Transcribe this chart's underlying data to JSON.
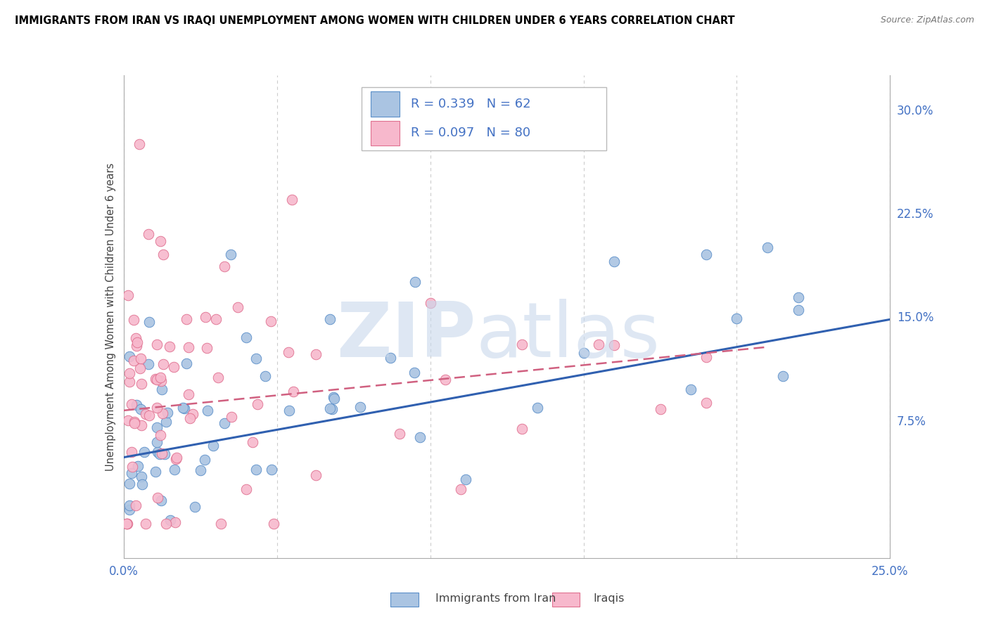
{
  "title": "IMMIGRANTS FROM IRAN VS IRAQI UNEMPLOYMENT AMONG WOMEN WITH CHILDREN UNDER 6 YEARS CORRELATION CHART",
  "source": "Source: ZipAtlas.com",
  "ylabel": "Unemployment Among Women with Children Under 6 years",
  "xlim": [
    0.0,
    0.25
  ],
  "ylim": [
    -0.025,
    0.325
  ],
  "x_tick_positions": [
    0.0,
    0.05,
    0.1,
    0.15,
    0.2,
    0.25
  ],
  "x_tick_labels": [
    "0.0%",
    "",
    "",
    "",
    "",
    "25.0%"
  ],
  "y_ticks_right": [
    0.075,
    0.15,
    0.225,
    0.3
  ],
  "y_tick_labels_right": [
    "7.5%",
    "15.0%",
    "22.5%",
    "30.0%"
  ],
  "legend_label1": "Immigrants from Iran",
  "legend_label2": "Iraqis",
  "R1": "R = 0.339",
  "N1": "N = 62",
  "R2": "R = 0.097",
  "N2": "N = 80",
  "color_iran_fill": "#aac4e2",
  "color_iran_edge": "#5b8fc9",
  "color_iraq_fill": "#f7b8cc",
  "color_iraq_edge": "#e07090",
  "color_iran_line": "#3060b0",
  "color_iraq_line": "#d06080",
  "iran_line_x": [
    0.0,
    0.25
  ],
  "iran_line_y": [
    0.048,
    0.148
  ],
  "iraq_line_x": [
    0.0,
    0.21
  ],
  "iraq_line_y": [
    0.082,
    0.128
  ],
  "watermark_color": "#c8d8ec"
}
